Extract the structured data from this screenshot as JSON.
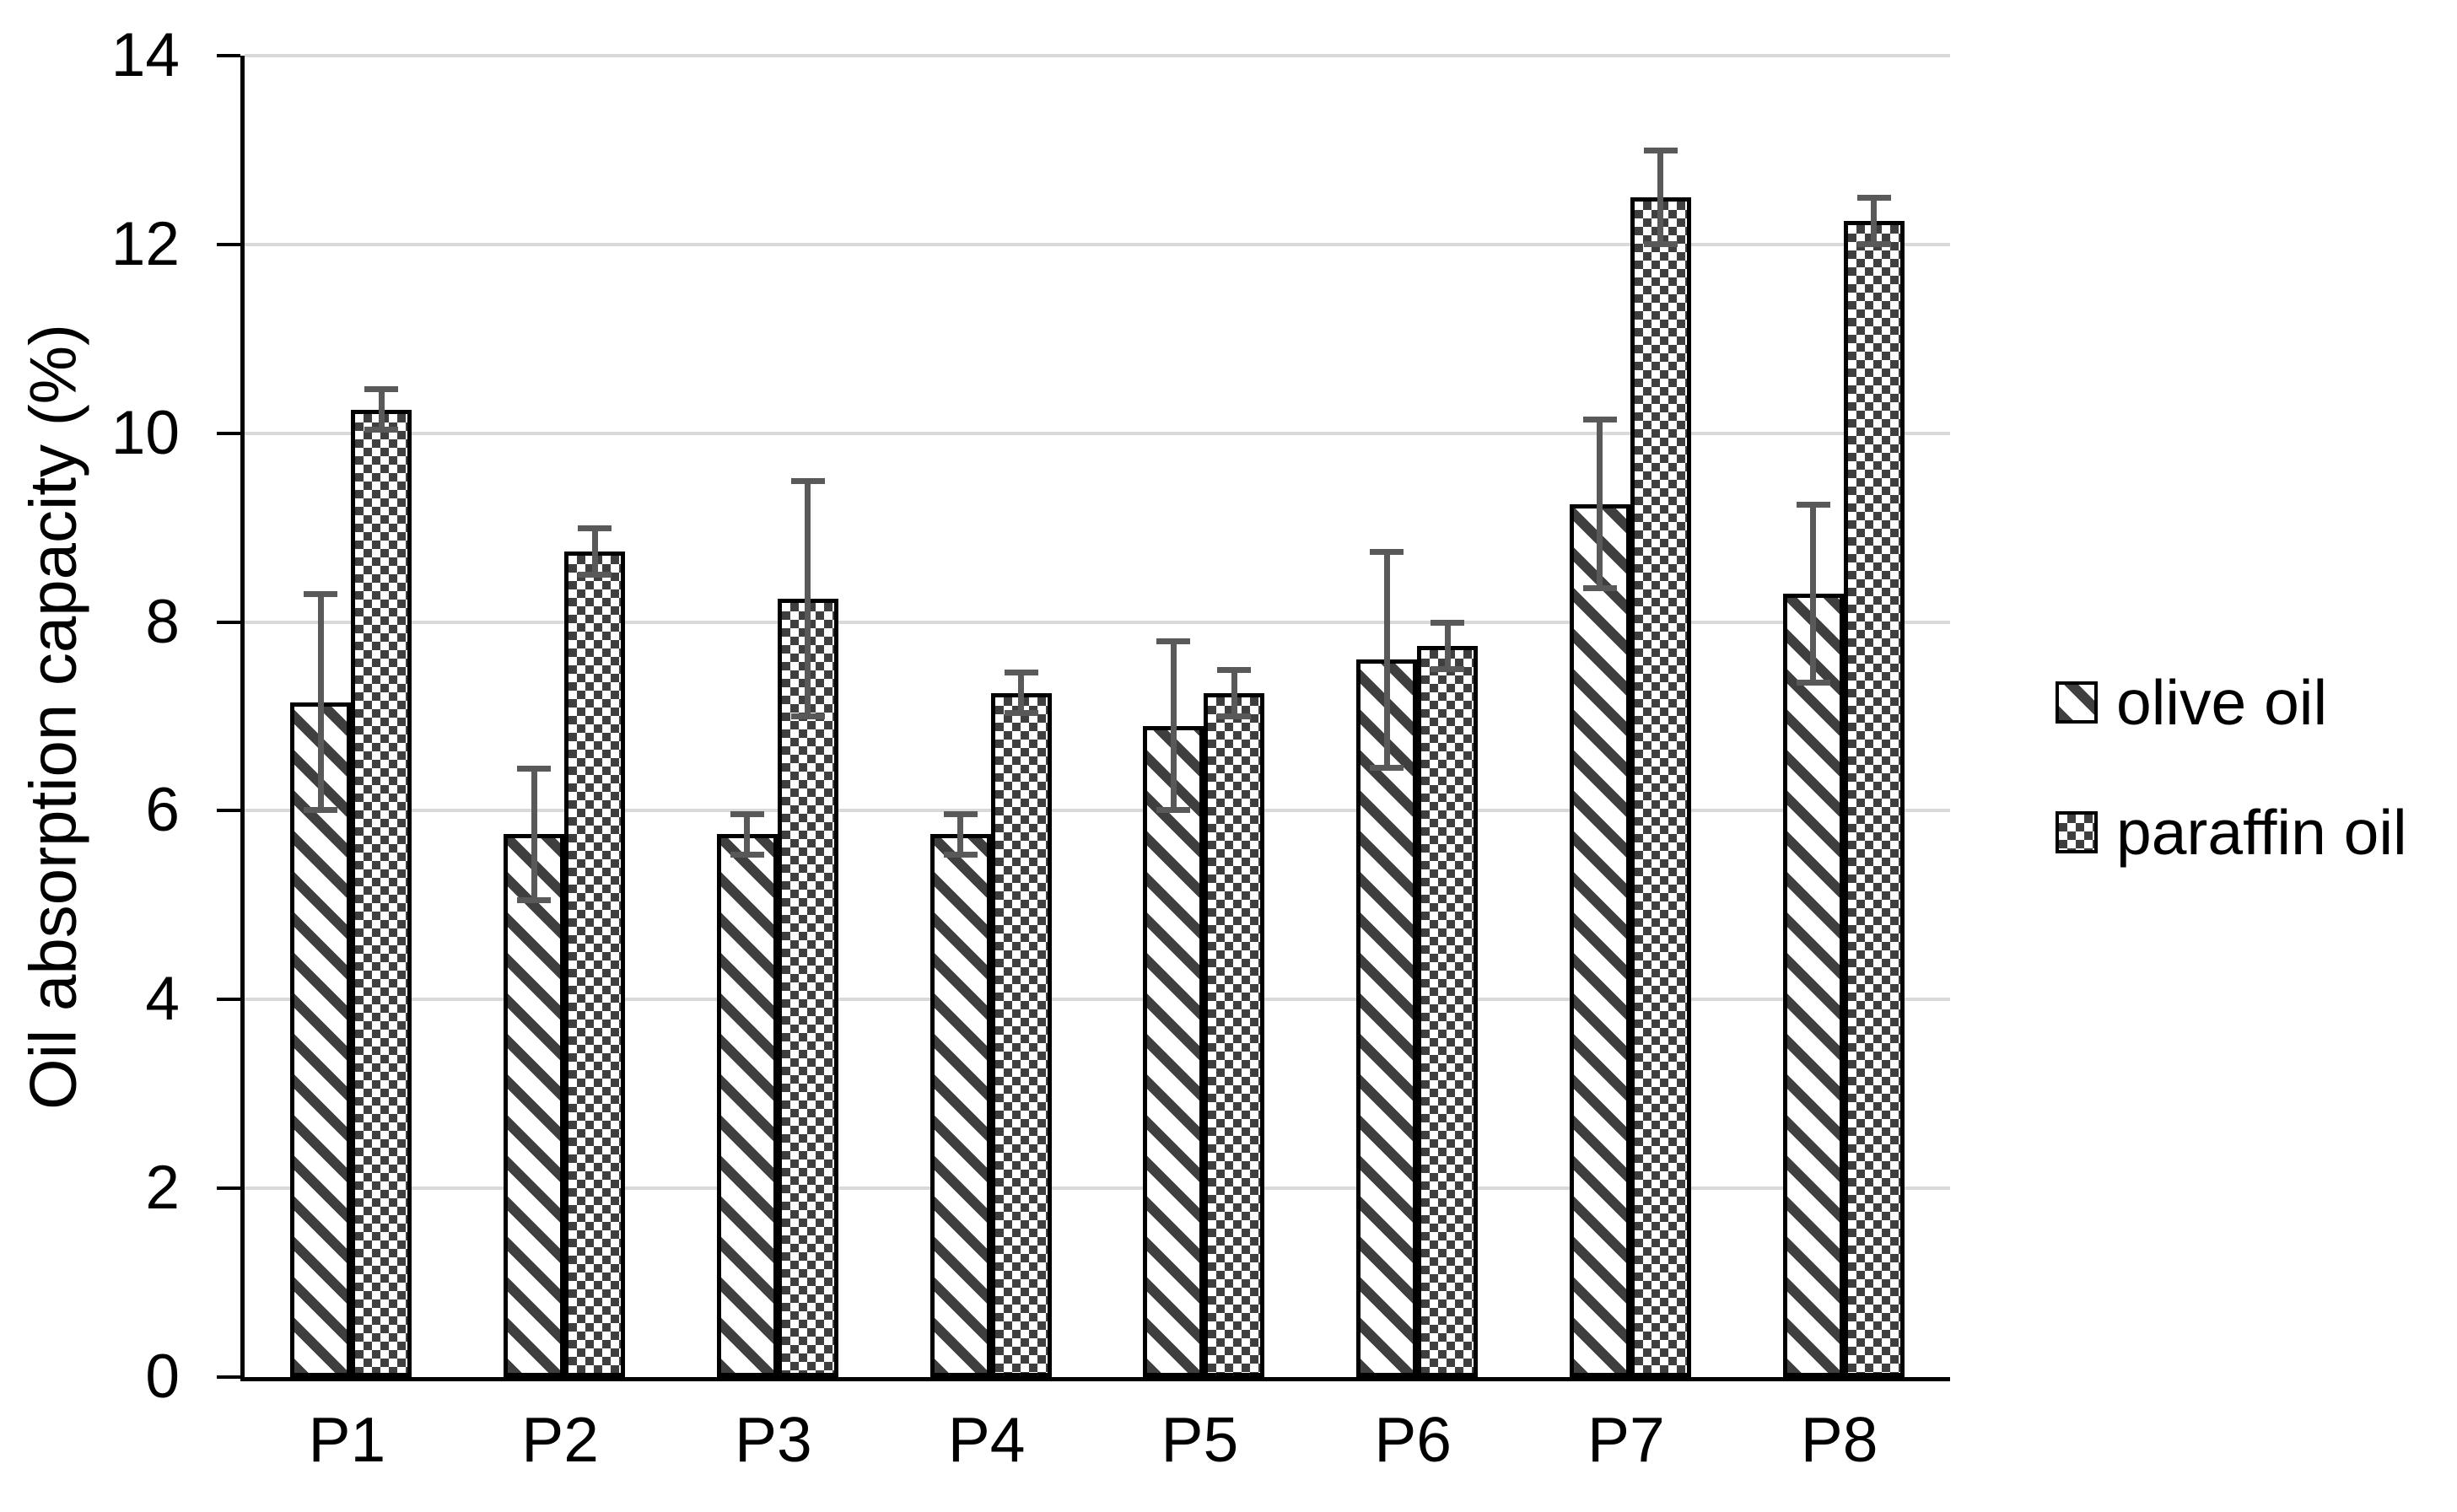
{
  "chart_data": {
    "type": "bar",
    "title": "",
    "categories": [
      "P1",
      "P2",
      "P3",
      "P4",
      "P5",
      "P6",
      "P7",
      "P8"
    ],
    "series": [
      {
        "name": "olive oil",
        "pattern": "diagonal-stripes",
        "values": [
          7.15,
          5.75,
          5.75,
          5.75,
          6.9,
          7.6,
          9.25,
          8.3
        ],
        "errors": [
          1.15,
          0.7,
          0.22,
          0.22,
          0.9,
          1.15,
          0.9,
          0.95
        ]
      },
      {
        "name": "paraffin oil",
        "pattern": "checkerboard",
        "values": [
          10.25,
          8.75,
          8.25,
          7.25,
          7.25,
          7.75,
          12.5,
          12.25
        ],
        "errors": [
          0.22,
          0.25,
          1.25,
          0.22,
          0.25,
          0.25,
          0.5,
          0.25
        ]
      }
    ],
    "xlabel": "",
    "ylabel": "Oil absorption capacity (%)",
    "ylim": [
      0,
      14
    ],
    "yticks": [
      0,
      2,
      4,
      6,
      8,
      10,
      12,
      14
    ],
    "grid": true,
    "legend_position": "right"
  },
  "colors": {
    "background": "#ffffff",
    "axis": "#000000",
    "gridline": "#d9d9d9",
    "pattern_dark": "#3f3f3f",
    "error_bar": "#595959",
    "bar_border": "#000000",
    "text": "#000000"
  }
}
